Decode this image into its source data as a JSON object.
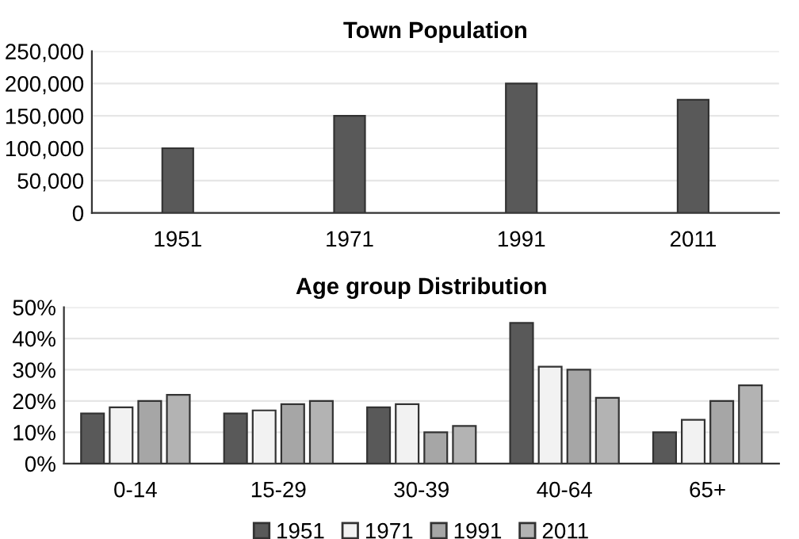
{
  "chart_data": [
    {
      "type": "bar",
      "title": "Town Population",
      "categories": [
        "1951",
        "1971",
        "1991",
        "2011"
      ],
      "values": [
        100000,
        150000,
        200000,
        175000
      ],
      "color": "#595959",
      "ylim": [
        0,
        250000
      ],
      "yticks": [
        {
          "value": 0,
          "label": "0"
        },
        {
          "value": 50000,
          "label": "50,000"
        },
        {
          "value": 100000,
          "label": "100,000"
        },
        {
          "value": 150000,
          "label": "150,000"
        },
        {
          "value": 200000,
          "label": "200,000"
        },
        {
          "value": 250000,
          "label": "250,000"
        }
      ],
      "grid": "y"
    },
    {
      "type": "bar",
      "title": "Age group Distribution",
      "categories": [
        "0-14",
        "15-29",
        "30-39",
        "40-64",
        "65+"
      ],
      "series": [
        {
          "name": "1951",
          "color": "#595959",
          "values": [
            16,
            16,
            18,
            45,
            10
          ]
        },
        {
          "name": "1971",
          "color": "#f2f2f2",
          "values": [
            18,
            17,
            19,
            31,
            14
          ]
        },
        {
          "name": "1991",
          "color": "#a6a6a6",
          "values": [
            20,
            19,
            10,
            30,
            20
          ]
        },
        {
          "name": "2011",
          "color": "#b3b3b3",
          "values": [
            22,
            20,
            12,
            21,
            25
          ]
        }
      ],
      "ylim": [
        0,
        50
      ],
      "yticks": [
        {
          "value": 0,
          "label": "0%"
        },
        {
          "value": 10,
          "label": "10%"
        },
        {
          "value": 20,
          "label": "20%"
        },
        {
          "value": 30,
          "label": "30%"
        },
        {
          "value": 40,
          "label": "40%"
        },
        {
          "value": 50,
          "label": "50%"
        }
      ],
      "grid": "y",
      "legend": "bottom"
    }
  ]
}
